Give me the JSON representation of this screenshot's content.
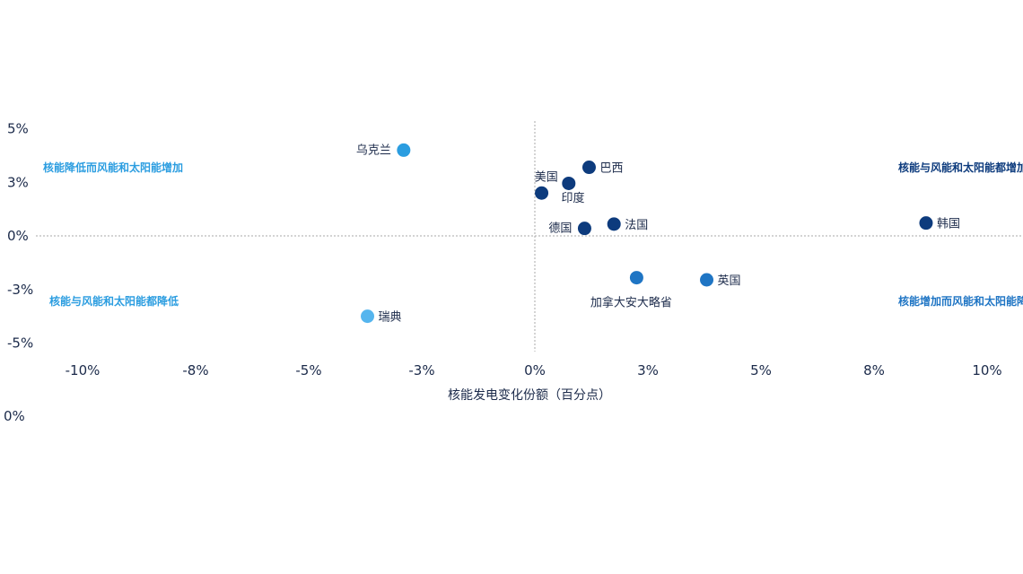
{
  "chart_data": {
    "type": "scatter",
    "title": "",
    "xlabel": "核能发电变化份额（百分点）",
    "ylabel": "",
    "xlim": [
      -10.5,
      10.8
    ],
    "ylim": [
      -5.8,
      5.3
    ],
    "x_ticks": [
      {
        "value": -10,
        "label": "-10%"
      },
      {
        "value": -7.5,
        "label": "-8%"
      },
      {
        "value": -5,
        "label": "-5%"
      },
      {
        "value": -2.5,
        "label": "-3%"
      },
      {
        "value": 0,
        "label": "0%"
      },
      {
        "value": 2.5,
        "label": "3%"
      },
      {
        "value": 5,
        "label": "5%"
      },
      {
        "value": 7.5,
        "label": "8%"
      },
      {
        "value": 10,
        "label": "10%"
      }
    ],
    "y_ticks": [
      {
        "value": 5,
        "label": "5%"
      },
      {
        "value": 2.5,
        "label": "3%"
      },
      {
        "value": 0,
        "label": "0%"
      },
      {
        "value": -2.5,
        "label": "-3%"
      },
      {
        "value": -5,
        "label": "-5%"
      }
    ],
    "stray_tick_label": "0%",
    "grid": false,
    "reference_lines": {
      "x": 0,
      "y": 0
    },
    "points": [
      {
        "label": "乌克兰",
        "x": -2.9,
        "y": 4.0,
        "color": "#2b9de0",
        "label_side": "left"
      },
      {
        "label": "巴西",
        "x": 1.2,
        "y": 3.2,
        "color": "#0d3b7d",
        "label_side": "right"
      },
      {
        "label": "美国",
        "x": 0.75,
        "y": 2.45,
        "color": "#0d3b7d",
        "label_side": "above-left"
      },
      {
        "label": "印度",
        "x": 0.15,
        "y": 2.0,
        "color": "#0d3b7d",
        "label_side": "below-right"
      },
      {
        "label": "德国",
        "x": 1.1,
        "y": 0.35,
        "color": "#0d3b7d",
        "label_side": "left"
      },
      {
        "label": "法国",
        "x": 1.75,
        "y": 0.55,
        "color": "#0d3b7d",
        "label_side": "right"
      },
      {
        "label": "韩国",
        "x": 8.65,
        "y": 0.6,
        "color": "#0d3b7d",
        "label_side": "right"
      },
      {
        "label": "加拿大安大略省",
        "x": 2.25,
        "y": -1.95,
        "color": "#1f75c4",
        "label_side": "below"
      },
      {
        "label": "英国",
        "x": 3.8,
        "y": -2.05,
        "color": "#1f75c4",
        "label_side": "right"
      },
      {
        "label": "瑞典",
        "x": -3.7,
        "y": -3.75,
        "color": "#55b5ee",
        "label_side": "right"
      }
    ],
    "quadrant_labels": [
      {
        "text": "核能降低而风能和太阳能增加",
        "position": "top-left",
        "color": "#2b9de0"
      },
      {
        "text": "核能与风能和太阳能都增加",
        "position": "top-right",
        "color": "#0d3b7d"
      },
      {
        "text": "核能与风能和太阳能都降低",
        "position": "bottom-left",
        "color": "#2b9de0"
      },
      {
        "text": "核能增加而风能和太阳能降低",
        "position": "bottom-right",
        "color": "#1f75c4"
      }
    ]
  }
}
